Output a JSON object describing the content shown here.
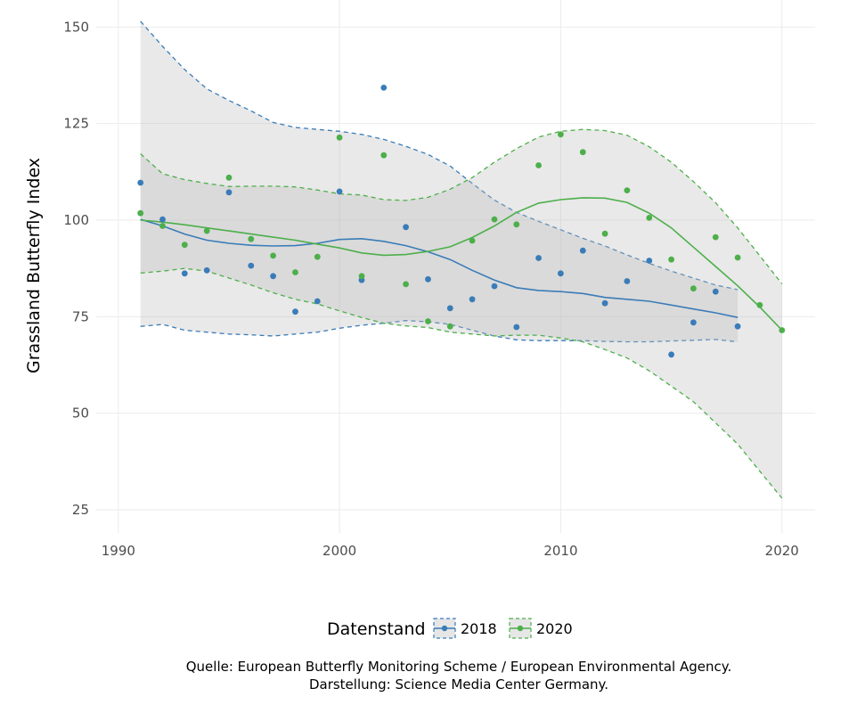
{
  "chart_data": {
    "type": "scatter",
    "title": "",
    "xlabel": "",
    "ylabel": "Grassland Butterfly Index",
    "xlim": [
      1989,
      2021.5
    ],
    "ylim": [
      19,
      157
    ],
    "x_ticks": [
      "1990",
      "2000",
      "2010",
      "2020"
    ],
    "y_ticks": [
      "25",
      "50",
      "75",
      "100",
      "125",
      "150"
    ],
    "grid": true,
    "legend": {
      "title": "Datenstand",
      "position": "bottom"
    },
    "caption": [
      "Quelle: European Butterfly Monitoring Scheme / European Environmental Agency.",
      "Darstellung: Science Media Center Germany."
    ],
    "series": [
      {
        "name": "2018",
        "color": "#3a7cb8",
        "points": {
          "x": [
            1991,
            1992,
            1993,
            1994,
            1995,
            1996,
            1997,
            1998,
            1999,
            2000,
            2001,
            2002,
            2003,
            2004,
            2005,
            2006,
            2007,
            2008,
            2009,
            2010,
            2011,
            2012,
            2013,
            2014,
            2015,
            2016,
            2017,
            2018
          ],
          "y": [
            109.7,
            100.2,
            86.2,
            87,
            107.2,
            88.2,
            85.5,
            76.3,
            79,
            107.4,
            84.5,
            134.3,
            98.2,
            84.7,
            77.2,
            79.5,
            82.9,
            72.3,
            90.2,
            86.2,
            92.1,
            78.5,
            84.2,
            89.5,
            65.2,
            73.5,
            81.5,
            72.5
          ]
        },
        "smooth": {
          "x": [
            1991,
            1992,
            1993,
            1994,
            1995,
            1996,
            1997,
            1998,
            1999,
            2000,
            2001,
            2002,
            2003,
            2004,
            2005,
            2006,
            2007,
            2008,
            2009,
            2010,
            2011,
            2012,
            2013,
            2014,
            2015,
            2016,
            2017,
            2018
          ],
          "y": [
            100.2,
            98.5,
            96.4,
            94.8,
            94,
            93.5,
            93.3,
            93.4,
            94,
            95,
            95.2,
            94.5,
            93.4,
            91.8,
            89.8,
            87,
            84.5,
            82.5,
            81.8,
            81.5,
            81,
            80,
            79.5,
            79,
            78,
            77,
            76,
            74.8
          ]
        },
        "band_upper": [
          151.5,
          145,
          139,
          134,
          131,
          128.3,
          125.3,
          124,
          123.5,
          123,
          122.2,
          120.9,
          119.1,
          117,
          114,
          109.5,
          105.2,
          102,
          99.7,
          97.5,
          95.3,
          93.3,
          91,
          88.8,
          86.8,
          85,
          83.2,
          82
        ],
        "band_lower": [
          72.5,
          73,
          71.5,
          71,
          70.5,
          70.3,
          70,
          70.5,
          71,
          72,
          72.8,
          73.3,
          74,
          73.7,
          73,
          71.5,
          70,
          69,
          68.8,
          68.8,
          68.8,
          68.6,
          68.5,
          68.5,
          68.7,
          68.9,
          69.1,
          68.5
        ]
      },
      {
        "name": "2020",
        "color": "#4daf4a",
        "points": {
          "x": [
            1991,
            1992,
            1993,
            1994,
            1995,
            1996,
            1997,
            1998,
            1999,
            2000,
            2001,
            2002,
            2003,
            2004,
            2005,
            2006,
            2007,
            2008,
            2009,
            2010,
            2011,
            2012,
            2013,
            2014,
            2015,
            2016,
            2017,
            2018,
            2019,
            2020
          ],
          "y": [
            101.8,
            98.5,
            93.6,
            97.2,
            111,
            95.1,
            90.8,
            86.5,
            90.5,
            121.4,
            85.5,
            116.8,
            83.4,
            73.8,
            72.5,
            94.7,
            100.2,
            98.9,
            114.2,
            122.2,
            117.6,
            96.5,
            107.7,
            100.6,
            89.8,
            82.3,
            95.6,
            90.3,
            78,
            71.5
          ]
        },
        "smooth": {
          "x": [
            1991,
            1992,
            1993,
            1994,
            1995,
            1996,
            1997,
            1998,
            1999,
            2000,
            2001,
            2002,
            2003,
            2004,
            2005,
            2006,
            2007,
            2008,
            2009,
            2010,
            2011,
            2012,
            2013,
            2014,
            2015,
            2016,
            2017,
            2018,
            2019,
            2020
          ],
          "y": [
            100,
            99.5,
            98.8,
            98,
            97.2,
            96.4,
            95.6,
            94.8,
            93.8,
            92.8,
            91.5,
            90.9,
            91.1,
            91.9,
            93.1,
            95.5,
            98.5,
            102,
            104.4,
            105.3,
            105.8,
            105.7,
            104.6,
            101.8,
            98,
            93,
            88,
            83,
            77.5,
            71.5
          ]
        },
        "band_upper": [
          117.2,
          112,
          110.5,
          109.5,
          108.7,
          108.8,
          108.8,
          108.6,
          107.8,
          106.8,
          106.5,
          105.3,
          105.1,
          105.9,
          108,
          111,
          115,
          118.5,
          121.5,
          123,
          123.5,
          123.2,
          122,
          119,
          115,
          110,
          104.5,
          98,
          90.8,
          83.5
        ],
        "band_lower": [
          86.3,
          86.8,
          87.5,
          86.8,
          85,
          83.2,
          81.2,
          79.5,
          78.3,
          76.5,
          74.8,
          73.3,
          72.6,
          72.2,
          71,
          70.5,
          70,
          70.2,
          70.2,
          69.5,
          68.5,
          66.5,
          64.3,
          61,
          57,
          53,
          47.5,
          42,
          35,
          28
        ]
      }
    ]
  }
}
